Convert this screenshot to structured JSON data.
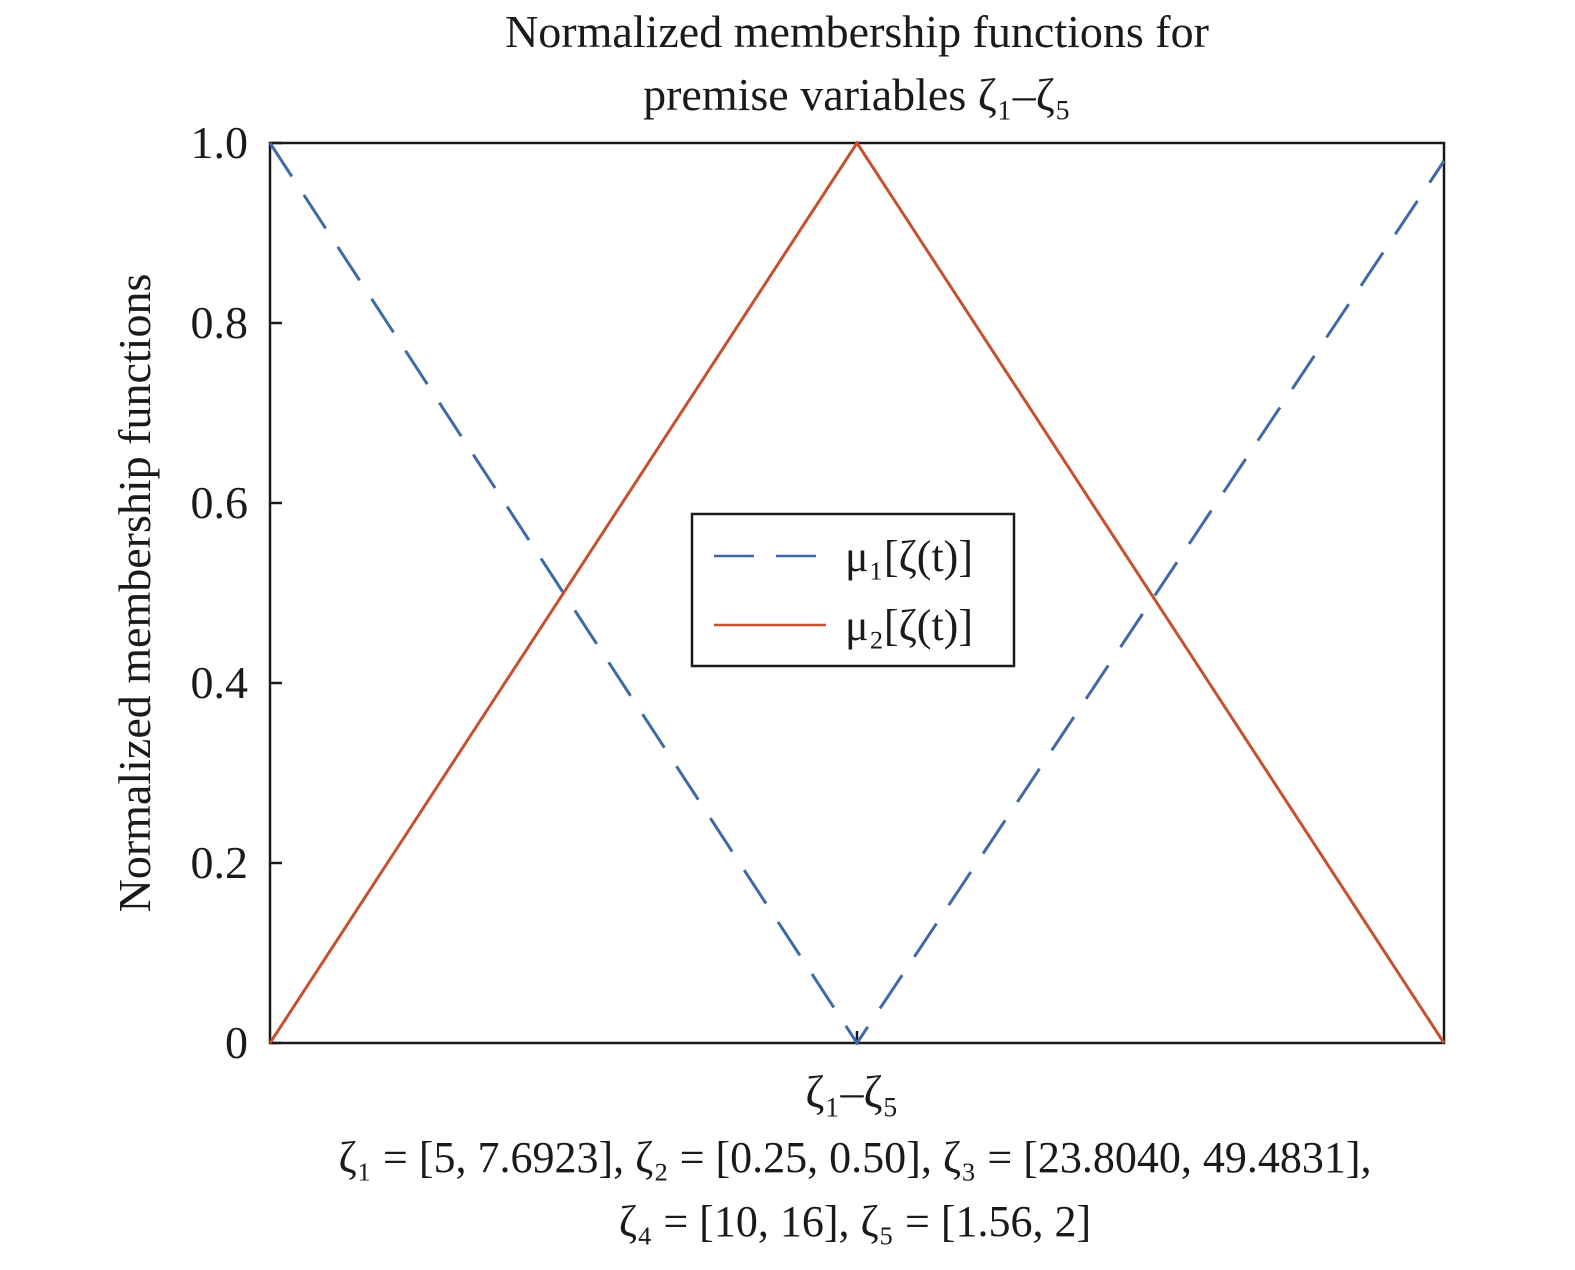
{
  "chart_data": {
    "type": "line",
    "title_lines": [
      "Normalized membership functions for",
      "premise variables ζ₁–ζ₅"
    ],
    "xlabel": "ζ₁–ζ₅",
    "ylabel": "Normalized membership functions",
    "xlim": [
      0,
      1
    ],
    "ylim": [
      0,
      1
    ],
    "x_tick_marks": [
      0.5
    ],
    "yticks": [
      {
        "value": 0,
        "label": "0"
      },
      {
        "value": 0.2,
        "label": "0.2"
      },
      {
        "value": 0.4,
        "label": "0.4"
      },
      {
        "value": 0.6,
        "label": "0.6"
      },
      {
        "value": 0.8,
        "label": "0.8"
      },
      {
        "value": 1.0,
        "label": "1.0"
      }
    ],
    "grid": false,
    "legend_position": "center",
    "series": [
      {
        "name": "μ₁[ζ(t)]",
        "style": "dashed",
        "color": "#3f6aa8",
        "x": [
          0,
          0.5,
          1
        ],
        "y": [
          1.0,
          0.0,
          0.98
        ]
      },
      {
        "name": "μ₂[ζ(t)]",
        "style": "solid",
        "color": "#c5512f",
        "x": [
          0,
          0.5,
          1
        ],
        "y": [
          0.0,
          1.0,
          0.0
        ]
      }
    ],
    "notes": [
      "ζ₁ = [5, 7.6923], ζ₂ = [0.25, 0.50], ζ₃ = [23.8040, 49.4831],",
      "ζ₄ = [10, 16], ζ₅ = [1.56, 2]"
    ]
  }
}
